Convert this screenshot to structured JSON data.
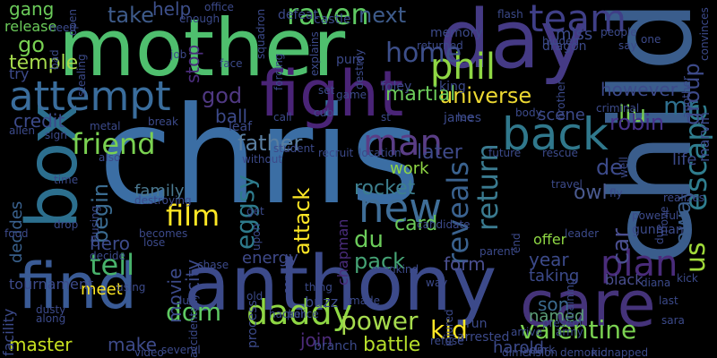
{
  "words": [
    {
      "text": "chris",
      "color": "#3b6ea4"
    },
    {
      "text": "mother",
      "color": "#4fbf6e"
    },
    {
      "text": "day",
      "color": "#453a85"
    },
    {
      "text": "child",
      "color": "#3a5d8c"
    },
    {
      "text": "anthony",
      "color": "#3c4a8a"
    },
    {
      "text": "fight",
      "color": "#4a2477"
    },
    {
      "text": "box",
      "color": "#2c6f8e"
    },
    {
      "text": "find",
      "color": "#3a5b96"
    },
    {
      "text": "care",
      "color": "#45337a"
    },
    {
      "text": "attempt",
      "color": "#3a6d9c"
    },
    {
      "text": "back",
      "color": "#30788c"
    },
    {
      "text": "team",
      "color": "#3f3f87"
    },
    {
      "text": "phil",
      "color": "#8fd744"
    },
    {
      "text": "friend",
      "color": "#7ad151"
    },
    {
      "text": "raven",
      "color": "#5ec962"
    },
    {
      "text": "daddy",
      "color": "#8fd744"
    },
    {
      "text": "valentine",
      "color": "#7ad151"
    },
    {
      "text": "power",
      "color": "#a6db4d"
    },
    {
      "text": "kid",
      "color": "#fde725"
    },
    {
      "text": "film",
      "color": "#fde725"
    },
    {
      "text": "attack",
      "color": "#fde725"
    },
    {
      "text": "eggsy",
      "color": "#2e7b8c"
    },
    {
      "text": "new",
      "color": "#3f6e98"
    },
    {
      "text": "man",
      "color": "#5a3d86"
    },
    {
      "text": "tell",
      "color": "#48b26b"
    },
    {
      "text": "dom",
      "color": "#5ec962"
    },
    {
      "text": "plan",
      "color": "#4a2c7b"
    },
    {
      "text": "us",
      "color": "#a0da39"
    },
    {
      "text": "universe",
      "color": "#ecd832"
    },
    {
      "text": "escape",
      "color": "#2f7d8e"
    },
    {
      "text": "away",
      "color": "#3a5c8a"
    },
    {
      "text": "mr",
      "color": "#2e6f8e"
    },
    {
      "text": "liu",
      "color": "#7ad151"
    },
    {
      "text": "group",
      "color": "#3d4a89"
    },
    {
      "text": "take",
      "color": "#3e5b8a"
    },
    {
      "text": "next",
      "color": "#3e5b8a"
    },
    {
      "text": "go",
      "color": "#78d152"
    },
    {
      "text": "home",
      "color": "#3d4f8a"
    },
    {
      "text": "gang",
      "color": "#6bcb5a"
    },
    {
      "text": "martial",
      "color": "#6bcb5a"
    },
    {
      "text": "god",
      "color": "#4f3882"
    },
    {
      "text": "father",
      "color": "#5a7ea0"
    },
    {
      "text": "return",
      "color": "#3a7a8f"
    },
    {
      "text": "reveals",
      "color": "#3a628f"
    },
    {
      "text": "rocket",
      "color": "#3d7f8e"
    },
    {
      "text": "begin",
      "color": "#3b6c91"
    },
    {
      "text": "du",
      "color": "#6bcb5a"
    },
    {
      "text": "form",
      "color": "#4a4f90"
    },
    {
      "text": "battle",
      "color": "#b6de2b"
    },
    {
      "text": "master",
      "color": "#c7e020"
    },
    {
      "text": "make",
      "color": "#3e4b8a"
    },
    {
      "text": "join",
      "color": "#4d2b7a"
    },
    {
      "text": "card",
      "color": "#6bcb5a"
    },
    {
      "text": "pack",
      "color": "#45a375"
    },
    {
      "text": "hero",
      "color": "#3c4a8a"
    },
    {
      "text": "meet",
      "color": "#fde725"
    },
    {
      "text": "family",
      "color": "#4a7890"
    },
    {
      "text": "son",
      "color": "#3b6a8f"
    },
    {
      "text": "named",
      "color": "#5c9e78"
    },
    {
      "text": "later",
      "color": "#3f4a8a"
    },
    {
      "text": "work",
      "color": "#8fd744"
    },
    {
      "text": "robin",
      "color": "#47328a"
    },
    {
      "text": "de",
      "color": "#3c4a8a"
    },
    {
      "text": "owl",
      "color": "#4a5a8f"
    },
    {
      "text": "car",
      "color": "#4a4f90"
    },
    {
      "text": "temple",
      "color": "#a6db4d"
    },
    {
      "text": "credit",
      "color": "#3c4a8a"
    },
    {
      "text": "decides",
      "color": "#3a628f"
    },
    {
      "text": "help",
      "color": "#3d4f8a"
    },
    {
      "text": "stop",
      "color": "#4a2c7b"
    },
    {
      "text": "movie",
      "color": "#3c4a8a"
    },
    {
      "text": "city",
      "color": "#3c4a8a"
    },
    {
      "text": "ball",
      "color": "#3c4a8a"
    },
    {
      "text": "energy",
      "color": "#3f4a8a"
    },
    {
      "text": "however",
      "color": "#3c4a8a"
    },
    {
      "text": "miss",
      "color": "#3c4a8a"
    },
    {
      "text": "year",
      "color": "#3c4a8a"
    },
    {
      "text": "scene",
      "color": "#3c4a8a"
    },
    {
      "text": "life",
      "color": "#3c4a8a"
    },
    {
      "text": "marvin",
      "color": "#3c4a8a"
    },
    {
      "text": "harold",
      "color": "#3c4a8a"
    },
    {
      "text": "taking",
      "color": "#3c4a8a"
    },
    {
      "text": "black",
      "color": "#4a4f90"
    },
    {
      "text": "release",
      "color": "#6bcb5a"
    },
    {
      "text": "try",
      "color": "#3c4a8a"
    },
    {
      "text": "tournament",
      "color": "#3c4a8a"
    },
    {
      "text": "facility",
      "color": "#3c4a8a"
    },
    {
      "text": "process",
      "color": "#3c4a8a"
    },
    {
      "text": "buzz",
      "color": "#3c4a8a"
    },
    {
      "text": "branch",
      "color": "#3c4a8a"
    },
    {
      "text": "run",
      "color": "#3c4a8a"
    },
    {
      "text": "arrested",
      "color": "#3c4a8a"
    },
    {
      "text": "offer",
      "color": "#8fd744"
    },
    {
      "text": "chapman",
      "color": "#4a2c7b"
    },
    {
      "text": "defeat",
      "color": "#3c4a8a"
    },
    {
      "text": "castle",
      "color": "#3c4a8a"
    },
    {
      "text": "memory",
      "color": "#3c4a8a"
    },
    {
      "text": "dragon",
      "color": "#3c4a8a"
    },
    {
      "text": "king",
      "color": "#3c4a8a"
    },
    {
      "text": "james",
      "color": "#3c4a8a"
    },
    {
      "text": "foley",
      "color": "#3c4a8a"
    },
    {
      "text": "pure",
      "color": "#3c4a8a"
    },
    {
      "text": "office",
      "color": "#3c4a8a"
    },
    {
      "text": "flash",
      "color": "#3c4a8a"
    },
    {
      "text": "people",
      "color": "#3c4a8a"
    },
    {
      "text": "one",
      "color": "#3c4a8a"
    },
    {
      "text": "brother",
      "color": "#3c4a8a"
    },
    {
      "text": "criminal",
      "color": "#3c4a8a"
    },
    {
      "text": "body",
      "color": "#3c4a8a"
    },
    {
      "text": "rescue",
      "color": "#3c4a8a"
    },
    {
      "text": "travel",
      "color": "#3c4a8a"
    },
    {
      "text": "gunman",
      "color": "#3c4a8a"
    },
    {
      "text": "powerful",
      "color": "#3c4a8a"
    },
    {
      "text": "due",
      "color": "#3c4a8a"
    },
    {
      "text": "sara",
      "color": "#3c4a8a"
    },
    {
      "text": "kidnapped",
      "color": "#3c4a8a"
    },
    {
      "text": "demonic",
      "color": "#3c4a8a"
    },
    {
      "text": "allen",
      "color": "#3c4a8a"
    },
    {
      "text": "metal",
      "color": "#3c4a8a"
    },
    {
      "text": "break",
      "color": "#3c4a8a"
    },
    {
      "text": "leaf",
      "color": "#3c4a8a"
    },
    {
      "text": "call",
      "color": "#3c4a8a"
    },
    {
      "text": "cub",
      "color": "#3c4a8a"
    },
    {
      "text": "set",
      "color": "#3c4a8a"
    },
    {
      "text": "face",
      "color": "#3c4a8a"
    },
    {
      "text": "job",
      "color": "#3c4a8a"
    },
    {
      "text": "also",
      "color": "#3c4a8a"
    },
    {
      "text": "food",
      "color": "#3c4a8a"
    },
    {
      "text": "drop",
      "color": "#3c4a8a"
    },
    {
      "text": "time",
      "color": "#3c4a8a"
    },
    {
      "text": "chase",
      "color": "#3c4a8a"
    },
    {
      "text": "luis",
      "color": "#3c4a8a"
    },
    {
      "text": "old",
      "color": "#3c4a8a"
    },
    {
      "text": "thing",
      "color": "#3c4a8a"
    },
    {
      "text": "several",
      "color": "#3c4a8a"
    },
    {
      "text": "accidentally",
      "color": "#3c4a8a"
    },
    {
      "text": "along",
      "color": "#3c4a8a"
    },
    {
      "text": "dusty",
      "color": "#3c4a8a"
    },
    {
      "text": "using",
      "color": "#3c4a8a"
    },
    {
      "text": "becomes",
      "color": "#3c4a8a"
    },
    {
      "text": "lose",
      "color": "#3c4a8a"
    },
    {
      "text": "decide",
      "color": "#3c4a8a"
    },
    {
      "text": "destroying",
      "color": "#3c4a8a"
    },
    {
      "text": "causing",
      "color": "#3c4a8a"
    },
    {
      "text": "candidate",
      "color": "#3c4a8a"
    },
    {
      "text": "way",
      "color": "#3c4a8a"
    },
    {
      "text": "mankind",
      "color": "#3c4a8a"
    },
    {
      "text": "service",
      "color": "#3c4a8a"
    },
    {
      "text": "police",
      "color": "#3c4a8a"
    },
    {
      "text": "made",
      "color": "#3c4a8a"
    },
    {
      "text": "refuse",
      "color": "#3c4a8a"
    },
    {
      "text": "injured",
      "color": "#3c4a8a"
    },
    {
      "text": "present",
      "color": "#3c4a8a"
    },
    {
      "text": "army",
      "color": "#3c4a8a"
    },
    {
      "text": "arrive",
      "color": "#3c4a8a"
    },
    {
      "text": "dimension",
      "color": "#3c4a8a"
    },
    {
      "text": "clark",
      "color": "#3c4a8a"
    },
    {
      "text": "training",
      "color": "#3c4a8a"
    },
    {
      "text": "leader",
      "color": "#3c4a8a"
    },
    {
      "text": "parent",
      "color": "#3c4a8a"
    },
    {
      "text": "end",
      "color": "#3c4a8a"
    },
    {
      "text": "future",
      "color": "#3c4a8a"
    },
    {
      "text": "recruit",
      "color": "#3c4a8a"
    },
    {
      "text": "location",
      "color": "#3c4a8a"
    },
    {
      "text": "without",
      "color": "#3c4a8a"
    },
    {
      "text": "student",
      "color": "#3c4a8a"
    },
    {
      "text": "squadron",
      "color": "#3c4a8a"
    },
    {
      "text": "explains",
      "color": "#3c4a8a"
    },
    {
      "text": "stealing",
      "color": "#3c4a8a"
    },
    {
      "text": "forcing",
      "color": "#3c4a8a"
    },
    {
      "text": "destroy",
      "color": "#3c4a8a"
    },
    {
      "text": "game",
      "color": "#3c4a8a"
    },
    {
      "text": "enough",
      "color": "#3c4a8a"
    },
    {
      "text": "need",
      "color": "#3c4a8a"
    },
    {
      "text": "open",
      "color": "#3c4a8a"
    },
    {
      "text": "bad",
      "color": "#3c4a8a"
    },
    {
      "text": "returned",
      "color": "#3c4a8a"
    },
    {
      "text": "hidden",
      "color": "#3c4a8a"
    },
    {
      "text": "say",
      "color": "#3c4a8a"
    },
    {
      "text": "convinces",
      "color": "#3c4a8a"
    },
    {
      "text": "another",
      "color": "#3c4a8a"
    },
    {
      "text": "move",
      "color": "#3c4a8a"
    },
    {
      "text": "realizes",
      "color": "#3c4a8a"
    },
    {
      "text": "well",
      "color": "#3c4a8a"
    },
    {
      "text": "fly",
      "color": "#3c4a8a"
    },
    {
      "text": "kick",
      "color": "#3c4a8a"
    },
    {
      "text": "last",
      "color": "#3c4a8a"
    },
    {
      "text": "diana",
      "color": "#3c4a8a"
    },
    {
      "text": "video",
      "color": "#3c4a8a"
    },
    {
      "text": "hacker",
      "color": "#3c4a8a"
    },
    {
      "text": "sign",
      "color": "#3c4a8a"
    },
    {
      "text": "lee",
      "color": "#3c4a8a"
    },
    {
      "text": "st",
      "color": "#3c4a8a"
    },
    {
      "text": "get",
      "color": "#3c4a8a"
    },
    {
      "text": "upon",
      "color": "#3c4a8a"
    },
    {
      "text": "hyun",
      "color": "#3c4a8a"
    }
  ]
}
